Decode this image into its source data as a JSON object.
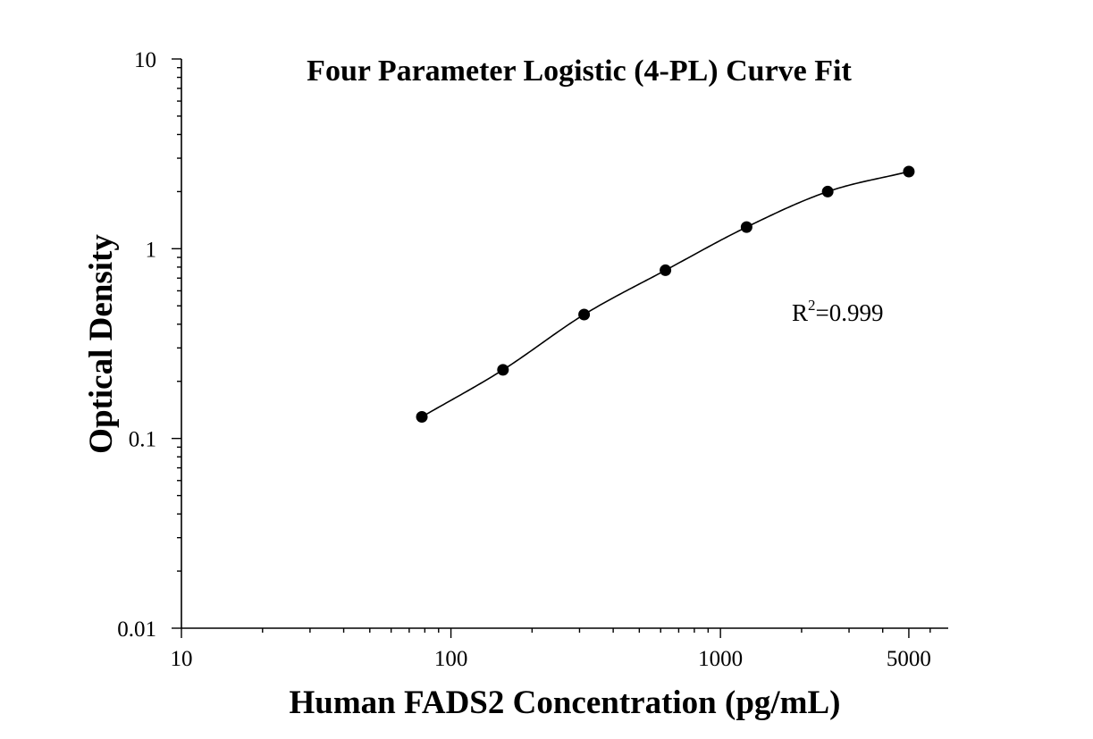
{
  "chart_data": {
    "type": "scatter",
    "title": "Four Parameter Logistic (4-PL) Curve Fit",
    "xlabel": "Human FADS2 Concentration (pg/mL)",
    "ylabel": "Optical Density",
    "x_scale": "log",
    "y_scale": "log",
    "xlim": [
      10,
      7000
    ],
    "ylim": [
      0.01,
      10
    ],
    "x_ticks": [
      10,
      100,
      1000,
      5000
    ],
    "y_ticks": [
      0.01,
      0.1,
      1,
      10
    ],
    "x_tick_labels": [
      "10",
      "100",
      "1000",
      "5000"
    ],
    "y_tick_labels": [
      "0.01",
      "0.1",
      "1",
      "10"
    ],
    "grid": false,
    "series": [
      {
        "x": [
          78,
          156,
          312,
          625,
          1250,
          2500,
          5000
        ],
        "y": [
          0.13,
          0.23,
          0.45,
          0.77,
          1.3,
          2.0,
          2.55
        ]
      }
    ],
    "fit_curve": {
      "model": "4-PL",
      "x_range": [
        78,
        5000
      ]
    },
    "annotation": {
      "base": "R",
      "superscript": "2",
      "text": "=0.999"
    }
  }
}
